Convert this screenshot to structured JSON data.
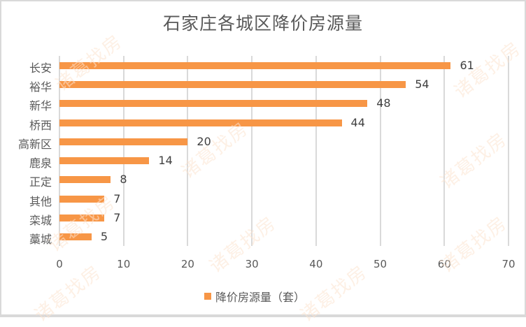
{
  "chart_data": {
    "type": "bar",
    "orientation": "horizontal",
    "title": "石家庄各城区降价房源量",
    "categories": [
      "长安",
      "裕华",
      "新华",
      "桥西",
      "高新区",
      "鹿泉",
      "正定",
      "其他",
      "栾城",
      "藁城"
    ],
    "series": [
      {
        "name": "降价房源量（套）",
        "values": [
          61,
          54,
          48,
          44,
          20,
          14,
          8,
          7,
          7,
          5
        ],
        "color": "#f79646"
      }
    ],
    "data_labels": [
      "61",
      "54",
      "48",
      "44",
      "20",
      "14",
      "8",
      "7",
      "7",
      "5"
    ],
    "xlabel": "",
    "ylabel": "",
    "xlim": [
      0,
      70
    ],
    "x_ticks": [
      "0",
      "10",
      "20",
      "30",
      "40",
      "50",
      "60",
      "70"
    ],
    "grid": "vertical",
    "legend_position": "bottom"
  },
  "legend": {
    "label": "降价房源量（套）"
  },
  "watermark": "诸葛找房"
}
